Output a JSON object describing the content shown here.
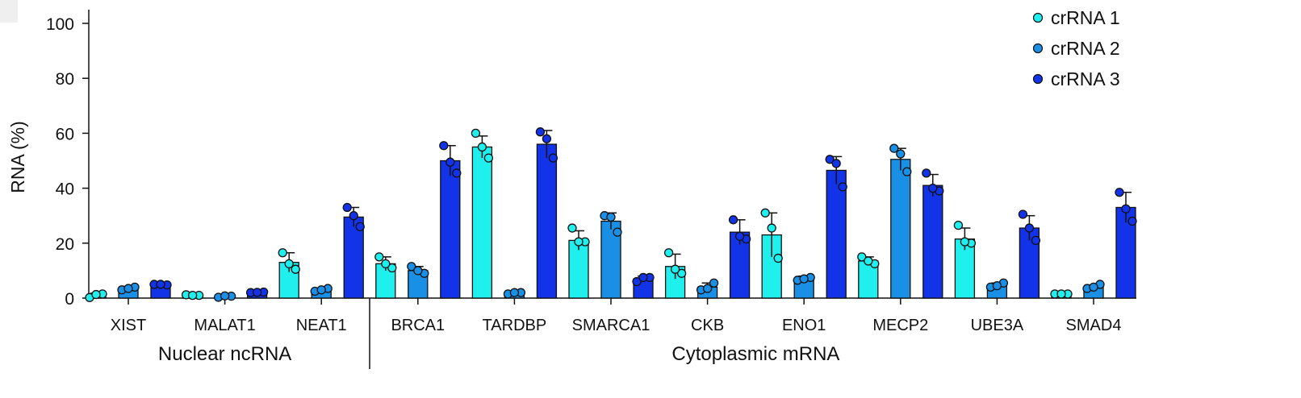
{
  "chart_data": {
    "type": "bar",
    "title": "",
    "xlabel": "",
    "ylabel": "RNA (%)",
    "ylim": [
      0,
      100
    ],
    "yticks": [
      0,
      20,
      40,
      60,
      80,
      100
    ],
    "categories": [
      "XIST",
      "MALAT1",
      "NEAT1",
      "BRCA1",
      "TARDBP",
      "SMARCA1",
      "CKB",
      "ENO1",
      "MECP2",
      "UBE3A",
      "SMAD4"
    ],
    "groups": [
      {
        "label": "Nuclear ncRNA",
        "categories": [
          "XIST",
          "MALAT1",
          "NEAT1"
        ]
      },
      {
        "label": "Cytoplasmic mRNA",
        "categories": [
          "BRCA1",
          "TARDBP",
          "SMARCA1",
          "CKB",
          "ENO1",
          "MECP2",
          "UBE3A",
          "SMAD4"
        ]
      }
    ],
    "legend_position": "top-right",
    "grid": false,
    "series": [
      {
        "name": "crRNA 1",
        "color": "#1ff0ee",
        "values": [
          1.0,
          1.0,
          13.0,
          12.5,
          55.0,
          21.0,
          11.5,
          23.0,
          13.5,
          21.5,
          1.5
        ],
        "errors": [
          0.8,
          0.3,
          3.5,
          2.5,
          4.0,
          3.5,
          4.5,
          8.0,
          1.5,
          4.0,
          0.5
        ],
        "points": [
          [
            0.2,
            1.5,
            1.3
          ],
          [
            1.2,
            1.0,
            1.0
          ],
          [
            16.5,
            10.5,
            12.5
          ],
          [
            15.0,
            11.0,
            12.5
          ],
          [
            60.0,
            51.0,
            55.0
          ],
          [
            25.5,
            20.5,
            20.5
          ],
          [
            16.5,
            9.0,
            10.5
          ],
          [
            31.0,
            14.5,
            25.5
          ],
          [
            15.0,
            12.5,
            13.5
          ],
          [
            26.5,
            20.0,
            20.5
          ],
          [
            1.5,
            1.5,
            1.5
          ]
        ]
      },
      {
        "name": "crRNA 2",
        "color": "#1a8fe6",
        "values": [
          3.5,
          0.6,
          3.0,
          10.0,
          1.8,
          28.0,
          4.0,
          7.0,
          50.5,
          4.5,
          4.0
        ],
        "errors": [
          0.8,
          0.3,
          0.5,
          1.5,
          0.5,
          3.0,
          1.5,
          1.0,
          4.0,
          1.0,
          0.8
        ],
        "points": [
          [
            3.0,
            4.0,
            3.5
          ],
          [
            0.3,
            0.7,
            0.8
          ],
          [
            2.5,
            3.5,
            3.0
          ],
          [
            11.5,
            9.0,
            10.0
          ],
          [
            1.5,
            2.0,
            2.0
          ],
          [
            30.0,
            24.0,
            29.5
          ],
          [
            3.0,
            5.5,
            3.5
          ],
          [
            6.5,
            7.5,
            7.0
          ],
          [
            54.5,
            46.0,
            52.5
          ],
          [
            4.0,
            5.5,
            4.5
          ],
          [
            3.5,
            5.0,
            4.0
          ]
        ]
      },
      {
        "name": "crRNA 3",
        "color": "#1233e8",
        "values": [
          5.0,
          2.0,
          29.5,
          50.0,
          56.0,
          7.0,
          24.0,
          46.5,
          41.0,
          25.5,
          33.0
        ],
        "errors": [
          0.5,
          0.3,
          3.5,
          5.5,
          5.0,
          1.0,
          4.5,
          5.0,
          4.0,
          4.5,
          5.5
        ],
        "points": [
          [
            5.0,
            4.8,
            5.0
          ],
          [
            2.0,
            2.2,
            2.1
          ],
          [
            33.0,
            26.0,
            30.0
          ],
          [
            55.5,
            45.5,
            49.5
          ],
          [
            60.5,
            51.0,
            58.0
          ],
          [
            6.0,
            7.5,
            7.5
          ],
          [
            28.5,
            21.5,
            22.5
          ],
          [
            50.5,
            40.5,
            49.0
          ],
          [
            45.5,
            39.0,
            40.0
          ],
          [
            30.5,
            21.0,
            25.5
          ],
          [
            38.5,
            28.0,
            32.5
          ]
        ]
      }
    ]
  }
}
